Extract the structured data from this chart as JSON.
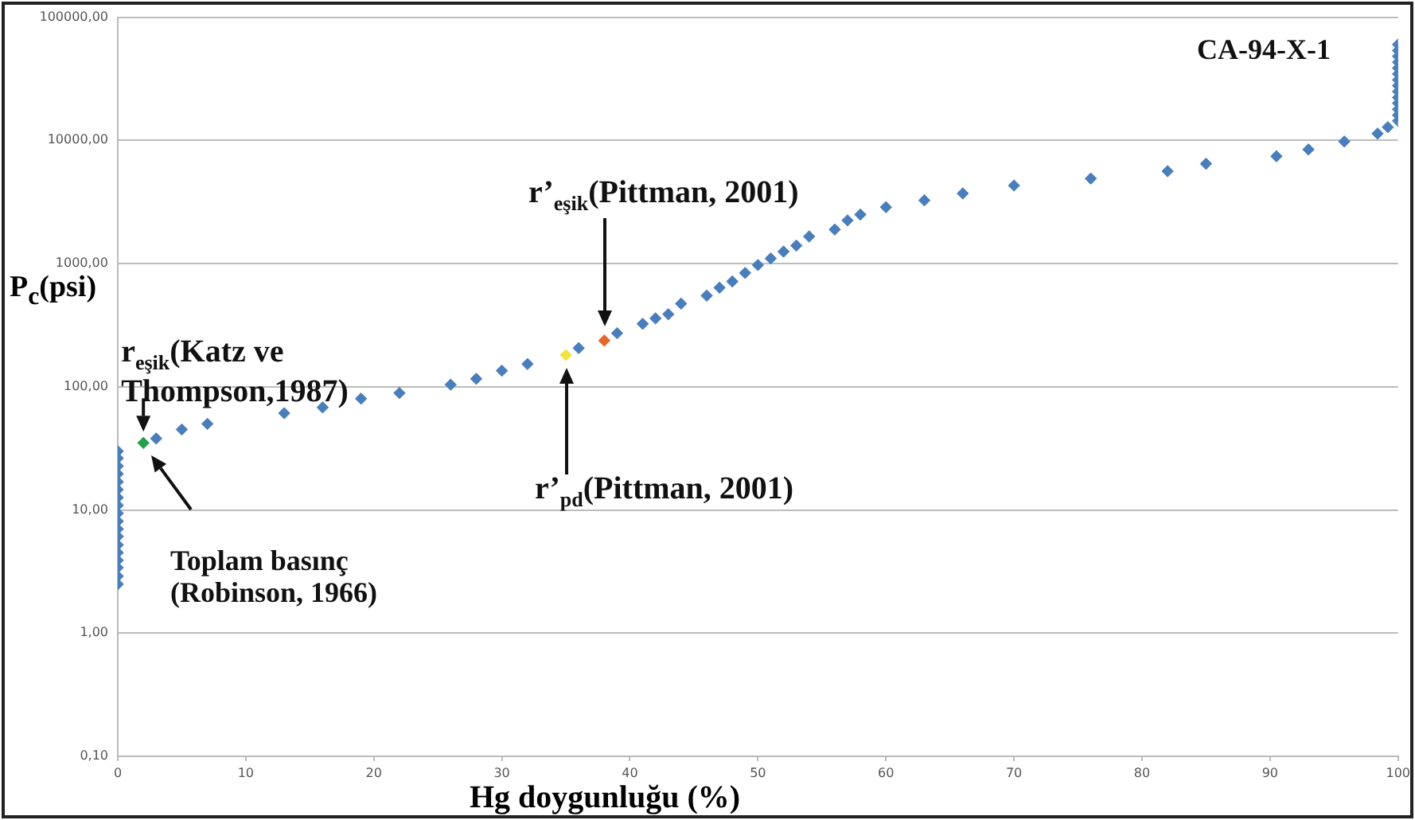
{
  "chart_data": {
    "type": "scatter",
    "xlabel": "Hg doygunluğu (%)",
    "ylabel": "P$_{c}$(psi)",
    "x": [
      0,
      0,
      0,
      0,
      0,
      0,
      0,
      0,
      0,
      0,
      0,
      0,
      0,
      0,
      0,
      0,
      0,
      0,
      2,
      3,
      5,
      7,
      13,
      16,
      19,
      22,
      26,
      28,
      30,
      32,
      35,
      36,
      38,
      39,
      41,
      42,
      43,
      44,
      46,
      47,
      48,
      49,
      50,
      51,
      52,
      53,
      54,
      56,
      57,
      58,
      60,
      63,
      66,
      70,
      76,
      82,
      85,
      90.5,
      93,
      95.8,
      98.4,
      99.2,
      100,
      100,
      100,
      100,
      100,
      100,
      100,
      100,
      100,
      100,
      100,
      100,
      100,
      100
    ],
    "values": [
      2.5,
      2.9,
      3.4,
      3.9,
      4.5,
      5.2,
      6.1,
      7,
      8.1,
      9.4,
      10.9,
      12.6,
      14.6,
      16.9,
      19.6,
      22.7,
      26.3,
      30,
      35,
      38,
      45,
      50,
      61,
      68,
      80,
      89,
      104,
      116,
      135,
      153,
      181,
      206,
      237,
      272,
      324,
      359,
      388,
      473,
      549,
      637,
      716,
      839,
      973,
      1100,
      1250,
      1400,
      1660,
      1890,
      2240,
      2500,
      2870,
      3260,
      3710,
      4300,
      4900,
      5620,
      6460,
      7430,
      8440,
      9790,
      11350,
      12800,
      14400,
      16000,
      17900,
      20000,
      22300,
      24900,
      27800,
      31000,
      34600,
      38600,
      43100,
      48100,
      53700,
      60000
    ],
    "colors": [
      "#4a7ebb",
      "#4a7ebb",
      "#4a7ebb",
      "#4a7ebb",
      "#4a7ebb",
      "#4a7ebb",
      "#4a7ebb",
      "#4a7ebb",
      "#4a7ebb",
      "#4a7ebb",
      "#4a7ebb",
      "#4a7ebb",
      "#4a7ebb",
      "#4a7ebb",
      "#4a7ebb",
      "#4a7ebb",
      "#4a7ebb",
      "#4a7ebb",
      "#22a04b",
      "#4a7ebb",
      "#4a7ebb",
      "#4a7ebb",
      "#4a7ebb",
      "#4a7ebb",
      "#4a7ebb",
      "#4a7ebb",
      "#4a7ebb",
      "#4a7ebb",
      "#4a7ebb",
      "#4a7ebb",
      "#f0e442",
      "#4a7ebb",
      "#e4672a",
      "#4a7ebb",
      "#4a7ebb",
      "#4a7ebb",
      "#4a7ebb",
      "#4a7ebb",
      "#4a7ebb",
      "#4a7ebb",
      "#4a7ebb",
      "#4a7ebb",
      "#4a7ebb",
      "#4a7ebb",
      "#4a7ebb",
      "#4a7ebb",
      "#4a7ebb",
      "#4a7ebb",
      "#4a7ebb",
      "#4a7ebb",
      "#4a7ebb",
      "#4a7ebb",
      "#4a7ebb",
      "#4a7ebb",
      "#4a7ebb",
      "#4a7ebb",
      "#4a7ebb",
      "#4a7ebb",
      "#4a7ebb",
      "#4a7ebb",
      "#4a7ebb",
      "#4a7ebb",
      "#4a7ebb",
      "#4a7ebb",
      "#4a7ebb",
      "#4a7ebb",
      "#4a7ebb",
      "#4a7ebb",
      "#4a7ebb",
      "#4a7ebb",
      "#4a7ebb",
      "#4a7ebb",
      "#4a7ebb",
      "#4a7ebb",
      "#4a7ebb",
      "#4a7ebb"
    ],
    "marker": "diamond",
    "log": "y",
    "grid": "y",
    "legend": false,
    "xlim": [
      0,
      100
    ],
    "xticks": [
      0,
      10,
      20,
      30,
      40,
      50,
      60,
      70,
      80,
      90,
      100
    ],
    "ylim": [
      0.1,
      100000
    ],
    "yticks": [
      {
        "value": 0.1,
        "label": "0,10"
      },
      {
        "value": 1,
        "label": "1,00"
      },
      {
        "value": 10,
        "label": "10,00"
      },
      {
        "value": 100,
        "label": "100,00"
      },
      {
        "value": 1000,
        "label": "1000,00"
      },
      {
        "value": 10000,
        "label": "10000,00"
      },
      {
        "value": 100000,
        "label": "100000,00"
      }
    ],
    "annotations": [
      {
        "text": "r$_{eşik}$(Katz ve Thompson,1987)",
        "x": 2,
        "y": 35
      },
      "Toplam basınç (Robinson, 1966)",
      "r’$_{pd}$(Pittman, 2001)",
      "r’$_{eşik}$(Pittman, 2001)",
      "CA-94-X-1"
    ]
  }
}
